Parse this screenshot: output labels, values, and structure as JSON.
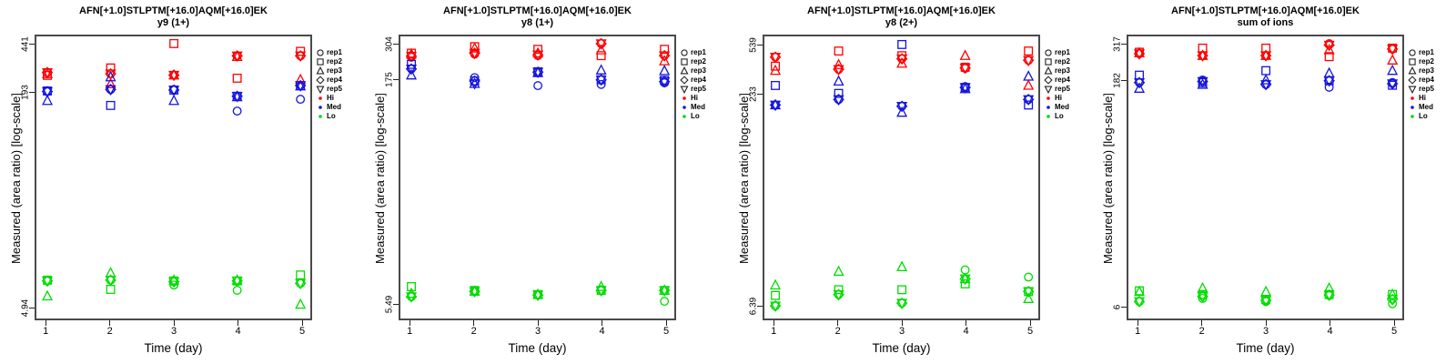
{
  "figure": {
    "x_axis_label": "Time (day)",
    "y_axis_label": "Measured (area ratio) [log-scale]",
    "x_tick_labels": [
      "1",
      "2",
      "3",
      "4",
      "5"
    ],
    "colors": {
      "hi": "#ff0000",
      "med": "#1414e0",
      "lo": "#00dd00",
      "legend_marker": "#222222",
      "box_border": "#4a4a4a"
    },
    "legend": {
      "rep_items": [
        {
          "label": "rep1",
          "marker": "circle"
        },
        {
          "label": "rep2",
          "marker": "square"
        },
        {
          "label": "rep3",
          "marker": "triangle-up"
        },
        {
          "label": "rep4",
          "marker": "diamond"
        },
        {
          "label": "rep5",
          "marker": "triangle-down"
        }
      ],
      "level_items": [
        {
          "label": "Hi",
          "color": "#ff0000"
        },
        {
          "label": "Med",
          "color": "#1414e0"
        },
        {
          "label": "Lo",
          "color": "#00dd00"
        }
      ]
    }
  },
  "chart_data": [
    {
      "type": "scatter",
      "title": "AFN[+1.0]STLPTM[+16.0]AQM[+16.0]EK",
      "subtitle": "y9 (1+)",
      "xlabel": "Time (day)",
      "ylabel": "Measured (area ratio) [log-scale]",
      "yscale": "log",
      "x": [
        1,
        2,
        3,
        4,
        5
      ],
      "ylim": [
        4.0,
        515
      ],
      "yticks": [
        {
          "value": 441,
          "label": "441"
        },
        {
          "value": 193,
          "label": "193"
        },
        {
          "value": 4.94,
          "label": "4.94"
        }
      ],
      "series": [
        {
          "name": "Hi",
          "color": "#ff0000",
          "reps": {
            "rep1": [
              268,
              262,
              256,
              357,
              357
            ],
            "rep2": [
              255,
              290,
              441,
              243,
              386
            ],
            "rep3": [
              262,
              220,
              256,
              352,
              237
            ],
            "rep4": [
              268,
              262,
              256,
              357,
              357
            ],
            "rep5": [
              268,
              262,
              256,
              357,
              357
            ]
          }
        },
        {
          "name": "Med",
          "color": "#1414e0",
          "reps": {
            "rep1": [
              193,
              200,
              200,
              138,
              169
            ],
            "rep2": [
              195,
              152,
              198,
              178,
              214
            ],
            "rep3": [
              165,
              248,
              165,
              176,
              212
            ],
            "rep4": [
              193,
              200,
              198,
              178,
              214
            ],
            "rep5": [
              193,
              200,
              198,
              178,
              214
            ]
          }
        },
        {
          "name": "Lo",
          "color": "#00dd00",
          "reps": {
            "rep1": [
              7.4,
              7.5,
              6.9,
              6.3,
              7.1
            ],
            "rep2": [
              7.5,
              6.4,
              7.4,
              7.4,
              8.2
            ],
            "rep3": [
              5.7,
              8.5,
              7.5,
              7.5,
              4.94
            ],
            "rep4": [
              7.4,
              7.5,
              7.3,
              7.4,
              7.1
            ],
            "rep5": [
              7.4,
              7.5,
              7.3,
              7.4,
              7.1
            ]
          }
        }
      ]
    },
    {
      "type": "scatter",
      "title": "AFN[+1.0]STLPTM[+16.0]AQM[+16.0]EK",
      "subtitle": "y8 (1+)",
      "xlabel": "Time (day)",
      "ylabel": "Measured (area ratio) [log-scale]",
      "yscale": "log",
      "x": [
        1,
        2,
        3,
        4,
        5
      ],
      "ylim": [
        4.32,
        350
      ],
      "yticks": [
        {
          "value": 304,
          "label": "304"
        },
        {
          "value": 175,
          "label": "175"
        },
        {
          "value": 5.49,
          "label": "5.49"
        }
      ],
      "series": [
        {
          "name": "Hi",
          "color": "#ff0000",
          "reps": {
            "rep1": [
              246,
              258,
              252,
              304,
              252
            ],
            "rep2": [
              262,
              290,
              278,
              252,
              278
            ],
            "rep3": [
              258,
              283,
              262,
              275,
              232
            ],
            "rep4": [
              250,
              262,
              255,
              304,
              252
            ],
            "rep5": [
              250,
              262,
              255,
              304,
              252
            ]
          }
        },
        {
          "name": "Med",
          "color": "#1414e0",
          "reps": {
            "rep1": [
              205,
              179,
              158,
              161,
              165
            ],
            "rep2": [
              220,
              170,
              196,
              173,
              172
            ],
            "rep3": [
              186,
              163,
              193,
              201,
              199
            ],
            "rep4": [
              205,
              170,
              195,
              173,
              168
            ],
            "rep5": [
              205,
              163,
              195,
              173,
              168
            ]
          }
        },
        {
          "name": "Lo",
          "color": "#00dd00",
          "reps": {
            "rep1": [
              5.9,
              6.4,
              6.05,
              6.5,
              5.49
            ],
            "rep2": [
              6.9,
              6.5,
              6.1,
              6.5,
              6.5
            ],
            "rep3": [
              6.2,
              6.4,
              6.1,
              6.9,
              6.5
            ],
            "rep4": [
              5.9,
              6.4,
              6.05,
              6.5,
              6.5
            ],
            "rep5": [
              5.9,
              6.4,
              6.05,
              6.5,
              6.5
            ]
          }
        }
      ]
    },
    {
      "type": "scatter",
      "title": "AFN[+1.0]STLPTM[+16.0]AQM[+16.0]EK",
      "subtitle": "y8 (2+)",
      "xlabel": "Time (day)",
      "ylabel": "Measured (area ratio) [log-scale]",
      "yscale": "log",
      "x": [
        1,
        2,
        3,
        4,
        5
      ],
      "ylim": [
        5.07,
        639
      ],
      "yticks": [
        {
          "value": 539,
          "label": "539"
        },
        {
          "value": 233,
          "label": "233"
        },
        {
          "value": 6.39,
          "label": "6.39"
        }
      ],
      "series": [
        {
          "name": "Hi",
          "color": "#ff0000",
          "reps": {
            "rep1": [
              434,
              352,
              422,
              358,
              411
            ],
            "rep2": [
              372,
              482,
              445,
              365,
              482
            ],
            "rep3": [
              345,
              381,
              390,
              445,
              267
            ],
            "rep4": [
              434,
              352,
              422,
              360,
              411
            ],
            "rep5": [
              434,
              352,
              422,
              360,
              411
            ]
          }
        },
        {
          "name": "Med",
          "color": "#1414e0",
          "reps": {
            "rep1": [
              191,
              210,
              187,
              262,
              210
            ],
            "rep2": [
              267,
              233,
              539,
              258,
              191
            ],
            "rep3": [
              191,
              287,
              168,
              252,
              312
            ],
            "rep4": [
              191,
              210,
              187,
              258,
              210
            ],
            "rep5": [
              191,
              210,
              187,
              258,
              210
            ]
          }
        },
        {
          "name": "Lo",
          "color": "#00dd00",
          "reps": {
            "rep1": [
              6.1,
              7.4,
              6.39,
              11.3,
              10.0
            ],
            "rep2": [
              7.3,
              8.05,
              8.05,
              8.9,
              7.8
            ],
            "rep3": [
              8.7,
              11.0,
              11.9,
              9.7,
              6.9
            ],
            "rep4": [
              6.1,
              7.4,
              6.39,
              9.7,
              7.8
            ],
            "rep5": [
              6.1,
              7.4,
              6.39,
              9.7,
              7.8
            ]
          }
        }
      ]
    },
    {
      "type": "scatter",
      "title": "AFN[+1.0]STLPTM[+16.0]AQM[+16.0]EK",
      "subtitle": "sum of ions",
      "xlabel": "Time (day)",
      "ylabel": "Measured (area ratio) [log-scale]",
      "yscale": "log",
      "x": [
        1,
        2,
        3,
        4,
        5
      ],
      "ylim": [
        4.92,
        364
      ],
      "yticks": [
        {
          "value": 317,
          "label": "317"
        },
        {
          "value": 182,
          "label": "182"
        },
        {
          "value": 6,
          "label": "6"
        }
      ],
      "series": [
        {
          "name": "Hi",
          "color": "#ff0000",
          "reps": {
            "rep1": [
              272,
              264,
              264,
              317,
              292
            ],
            "rep2": [
              278,
              296,
              296,
              260,
              296
            ],
            "rep3": [
              275,
              264,
              264,
              288,
              246
            ],
            "rep4": [
              272,
              264,
              264,
              310,
              292
            ],
            "rep5": [
              272,
              264,
              264,
              310,
              292
            ]
          }
        },
        {
          "name": "Med",
          "color": "#1414e0",
          "reps": {
            "rep1": [
              175,
              182,
              170,
              163,
              175
            ],
            "rep2": [
              196,
              175,
              210,
              180,
              168
            ],
            "rep3": [
              160,
              170,
              182,
              202,
              210
            ],
            "rep4": [
              175,
              178,
              170,
              180,
              172
            ],
            "rep5": [
              175,
              178,
              170,
              180,
              172
            ]
          }
        },
        {
          "name": "Lo",
          "color": "#00dd00",
          "reps": {
            "rep1": [
              6.2,
              6.5,
              6.2,
              6.8,
              6.0
            ],
            "rep2": [
              7.3,
              6.9,
              6.4,
              6.9,
              6.9
            ],
            "rep3": [
              7.2,
              7.6,
              7.2,
              7.6,
              6.9
            ],
            "rep4": [
              6.2,
              6.7,
              6.3,
              6.85,
              6.4
            ],
            "rep5": [
              6.2,
              6.7,
              6.3,
              6.85,
              6.4
            ]
          }
        }
      ]
    }
  ]
}
